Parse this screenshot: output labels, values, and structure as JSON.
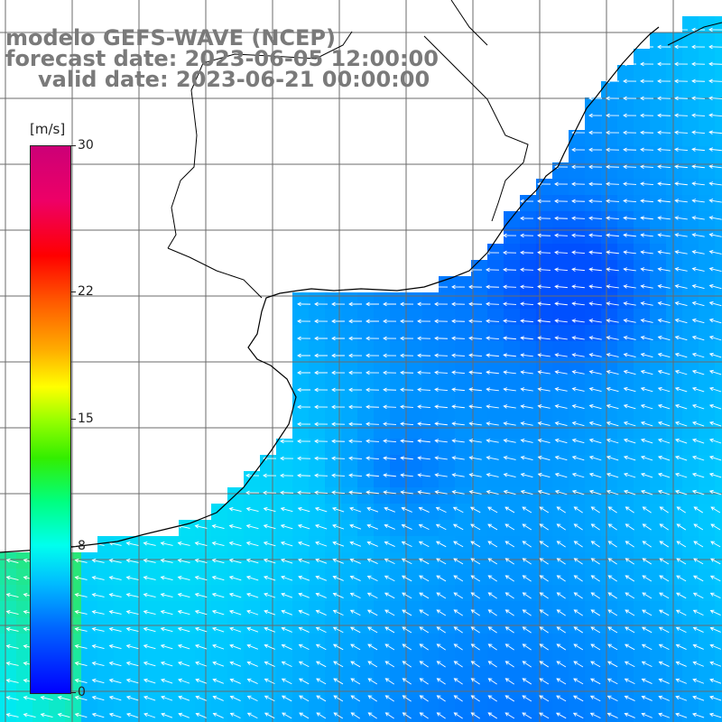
{
  "titles": {
    "line1": "modelo GEFS-WAVE (NCEP)",
    "line2": "forecast date: 2023-06-05 12:00:00",
    "line3": "valid date: 2023-06-21 00:00:00"
  },
  "colorbar": {
    "unit": "[m/s]",
    "ticks": [
      "30",
      "22",
      "15",
      "8",
      "0"
    ],
    "tick_values": [
      30,
      22,
      15,
      8,
      0
    ],
    "range": [
      0,
      30
    ],
    "colors": [
      "#0000ff",
      "#00bbff",
      "#00ffee",
      "#33ee00",
      "#ffff00",
      "#ff5500",
      "#ff0000",
      "#cc0077"
    ]
  },
  "map": {
    "field": "wind speed",
    "background_color": "#ffffff",
    "land_color": "#ffffff",
    "coastline_color": "#000000",
    "grid_color": "#6b6b6b",
    "arrow_color": "#ffffff",
    "arrow_direction": "from east / south-east, pointing west / north-west",
    "dominant_speed_range_ms": [
      4,
      9
    ]
  }
}
